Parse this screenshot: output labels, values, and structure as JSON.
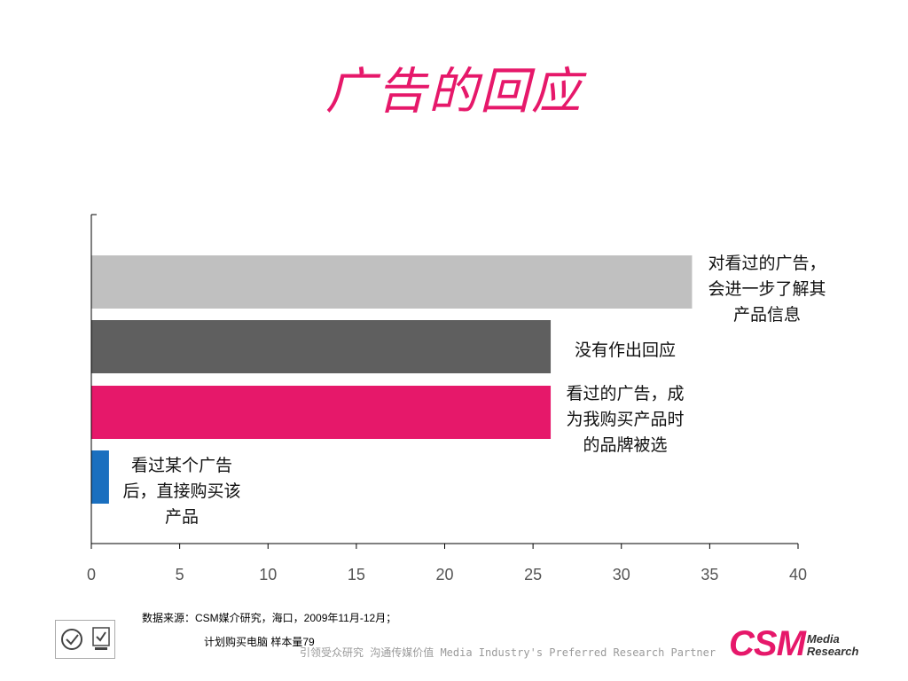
{
  "slide": {
    "source_note": "数据来源：CSM媒介研究，海口，2009年11月-12月；",
    "sample_note": "计划购买电脑 样本量79",
    "slogan": "引领受众研究 沟通传媒价值   Media Industry's Preferred Research Partner",
    "logo": {
      "main": "CSM",
      "line1": "Media",
      "line2": "Research"
    },
    "colors": {
      "title": "#e6186a",
      "brand": "#e6186a"
    }
  },
  "chart_data": {
    "type": "bar",
    "orientation": "horizontal",
    "title": "广告的回应",
    "categories": [
      "对看过的广告，会进一步了解其产品信息",
      "没有作出回应",
      "看过的广告，成为我购买产品时的品牌被选",
      "看过某个广告后，直接购买该产品"
    ],
    "label_lines": [
      [
        "对看过的广告，",
        "会进一步了解其",
        "产品信息"
      ],
      [
        "没有作出回应"
      ],
      [
        "看过的广告，成",
        "为我购买产品时",
        "的品牌被选"
      ],
      [
        "看过某个广告",
        "后，直接购买该",
        "产品"
      ]
    ],
    "values": [
      34,
      26,
      26,
      1
    ],
    "colors": [
      "#c0c0c0",
      "#5f5f5f",
      "#e6186a",
      "#1a6fbf"
    ],
    "xlim": [
      0,
      40
    ],
    "xticks": [
      "0",
      "5",
      "10",
      "15",
      "20",
      "25",
      "30",
      "35",
      "40"
    ],
    "xlabel": "",
    "ylabel": "",
    "grid": false,
    "legend": "none"
  }
}
